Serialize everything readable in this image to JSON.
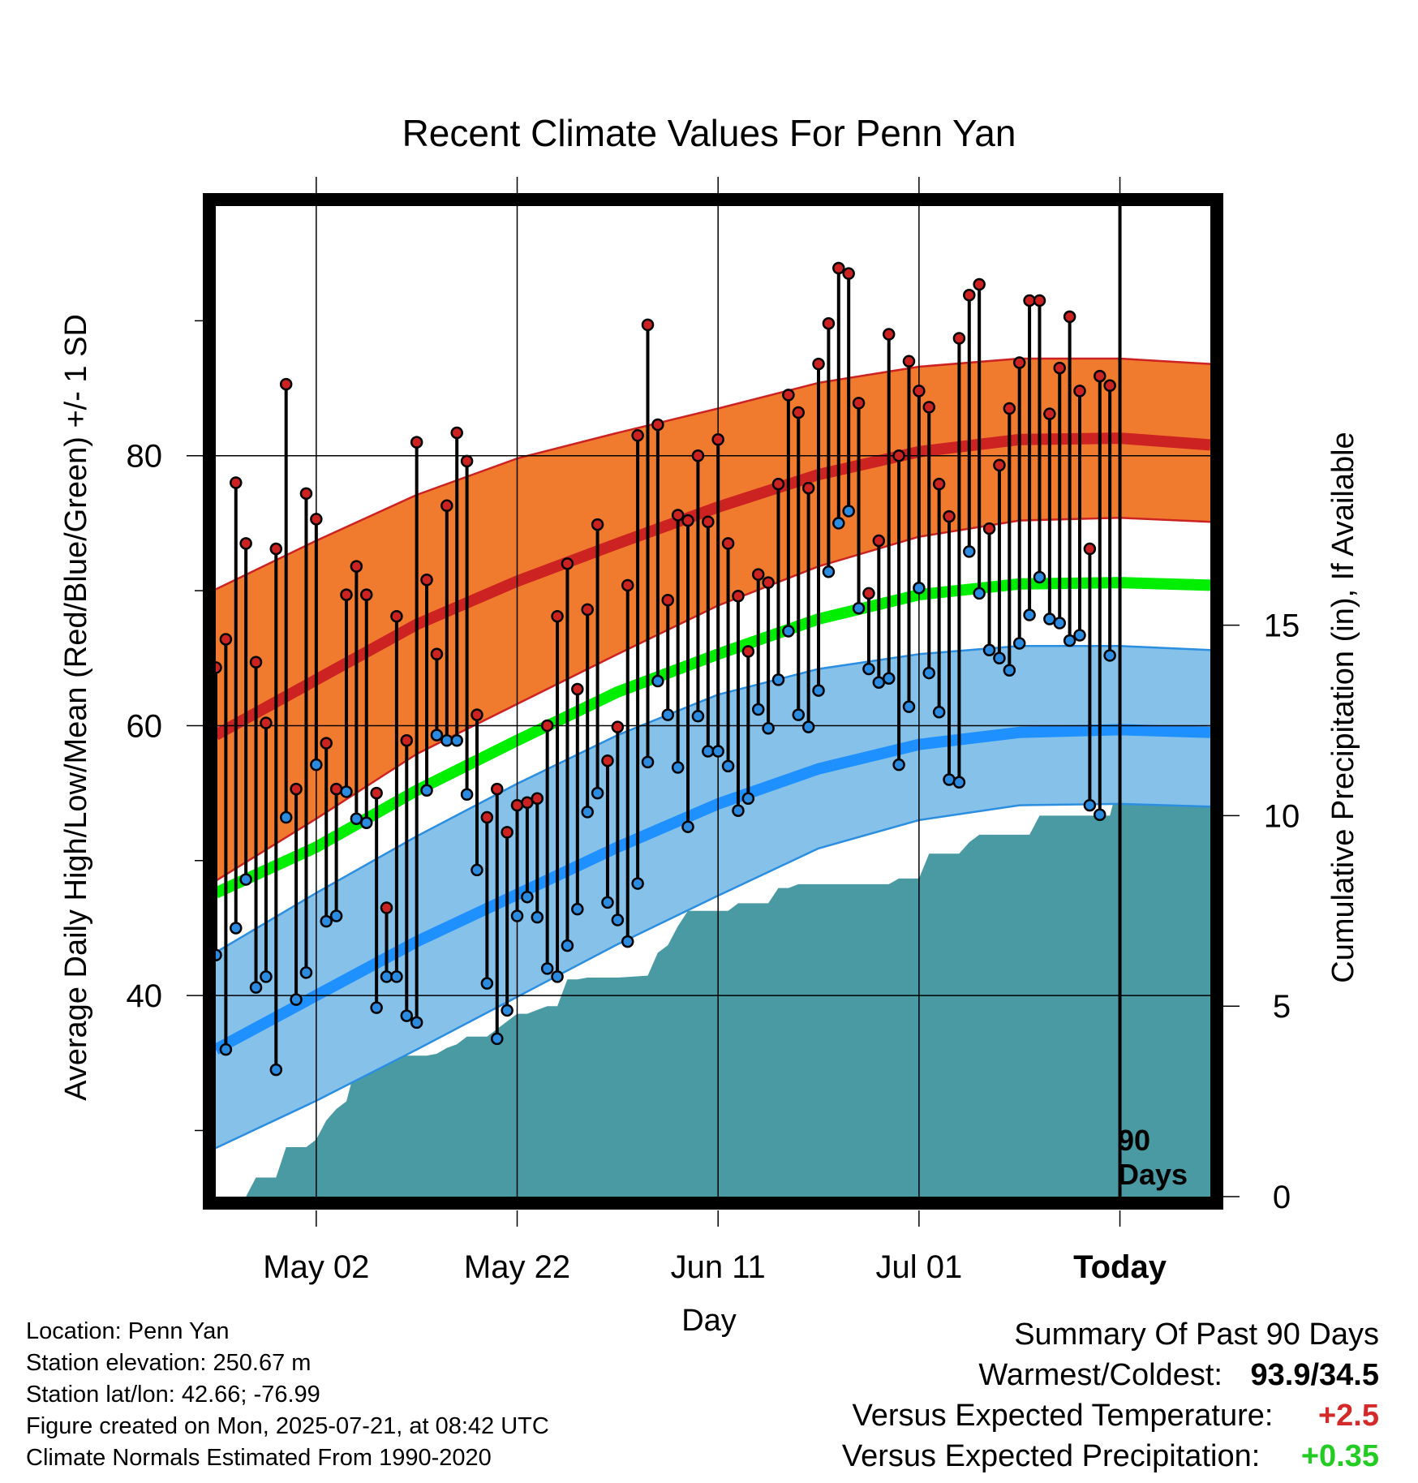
{
  "title": "Recent Climate Values For Penn Yan",
  "left_axis_label": "Average Daily High/Low/Mean (Red/Blue/Green) +/- 1 SD",
  "right_axis_label": "Cumulative Precipitation (in), If Available",
  "x_axis_label": "Day",
  "today_marker": {
    "label_line1": "90",
    "label_line2": "Days"
  },
  "station_info": {
    "location": "Location: Penn Yan",
    "elevation": "Station elevation: 250.67 m",
    "latlon": "Station lat/lon: 42.66; -76.99",
    "created": "Figure created on Mon, 2025-07-21, at 08:42 UTC",
    "normals": "Climate Normals Estimated From 1990-2020"
  },
  "summary": {
    "heading": "Summary Of Past 90 Days",
    "warmest_coldest_label": "Warmest/Coldest:",
    "warmest_coldest_value": "93.9/34.5",
    "temp_label": "Versus Expected Temperature:",
    "temp_value": "+2.5",
    "temp_color": "#d42a2a",
    "precip_label": "Versus Expected Precipitation:",
    "precip_value": "+0.35",
    "precip_color": "#22cc22"
  },
  "chart_data": {
    "type": "line",
    "x_unit": "day offset from Today (0 = Today)",
    "xlim": [
      -90,
      9
    ],
    "x_ticks": [
      {
        "x": -80,
        "label": "May 02"
      },
      {
        "x": -60,
        "label": "May 22"
      },
      {
        "x": -40,
        "label": "Jun 11"
      },
      {
        "x": -20,
        "label": "Jul 01"
      },
      {
        "x": 0,
        "label": "Today"
      }
    ],
    "temp_axis": {
      "ylim": [
        25.1,
        98.5
      ],
      "ticks": [
        40,
        60,
        80
      ],
      "minor_ticks": [
        30,
        50,
        70,
        90
      ],
      "grid": true
    },
    "precip_axis": {
      "ylim": [
        0,
        26
      ],
      "ticks": [
        0,
        5,
        10,
        15
      ]
    },
    "normals": {
      "x": [
        -90,
        -80,
        -70,
        -60,
        -50,
        -40,
        -30,
        -20,
        -10,
        0,
        9
      ],
      "mean_high": [
        59.3,
        63.4,
        67.5,
        70.7,
        73.5,
        76.2,
        78.6,
        80.3,
        81.2,
        81.3,
        80.8
      ],
      "high_upper": [
        70.1,
        73.7,
        77.1,
        79.8,
        81.7,
        83.5,
        85.4,
        86.6,
        87.2,
        87.2,
        86.8
      ],
      "high_lower": [
        48.5,
        53.1,
        57.9,
        61.6,
        65.3,
        68.9,
        71.8,
        74.0,
        75.2,
        75.4,
        75.1
      ],
      "mean_avg": [
        47.6,
        51.0,
        55.2,
        58.9,
        62.5,
        65.3,
        67.9,
        69.7,
        70.5,
        70.6,
        70.4
      ],
      "mean_low": [
        36.0,
        40.0,
        44.0,
        47.5,
        51.0,
        54.2,
        56.8,
        58.6,
        59.5,
        59.7,
        59.5
      ],
      "low_upper": [
        43.2,
        47.6,
        51.8,
        55.7,
        59.3,
        62.3,
        64.2,
        65.3,
        65.9,
        65.9,
        65.6
      ],
      "low_lower": [
        28.7,
        32.2,
        36.0,
        39.9,
        43.8,
        47.4,
        50.9,
        53.0,
        54.1,
        54.2,
        54.0
      ]
    },
    "daily_x": [
      -90,
      -89,
      -88,
      -87,
      -86,
      -85,
      -84,
      -83,
      -82,
      -81,
      -80,
      -79,
      -78,
      -77,
      -76,
      -75,
      -74,
      -73,
      -72,
      -71,
      -70,
      -69,
      -68,
      -67,
      -66,
      -65,
      -64,
      -63,
      -62,
      -61,
      -60,
      -59,
      -58,
      -57,
      -56,
      -55,
      -54,
      -53,
      -52,
      -51,
      -50,
      -49,
      -48,
      -47,
      -46,
      -45,
      -44,
      -43,
      -42,
      -41,
      -40,
      -39,
      -38,
      -37,
      -36,
      -35,
      -34,
      -33,
      -32,
      -31,
      -30,
      -29,
      -28,
      -27,
      -26,
      -25,
      -24,
      -23,
      -22,
      -21,
      -20,
      -19,
      -18,
      -17,
      -16,
      -15,
      -14,
      -13,
      -12,
      -11,
      -10,
      -9,
      -8,
      -7,
      -6,
      -5,
      -4,
      -3,
      -2,
      -1
    ],
    "series": [
      {
        "name": "High",
        "color": "#cc2222",
        "values": [
          64.3,
          66.4,
          78.0,
          73.5,
          64.7,
          60.2,
          73.1,
          85.3,
          55.3,
          77.2,
          75.3,
          58.7,
          55.3,
          69.7,
          71.8,
          69.7,
          55.0,
          46.5,
          68.1,
          58.9,
          81.0,
          70.8,
          65.3,
          76.3,
          81.7,
          79.6,
          60.8,
          53.2,
          55.3,
          52.1,
          54.1,
          54.3,
          54.6,
          60.0,
          68.1,
          72.0,
          62.7,
          68.6,
          74.9,
          57.4,
          59.9,
          70.4,
          81.5,
          89.7,
          82.3,
          69.3,
          75.6,
          75.2,
          80.0,
          75.1,
          81.2,
          73.5,
          69.6,
          65.5,
          71.2,
          70.6,
          77.9,
          84.5,
          83.2,
          77.6,
          86.8,
          89.8,
          93.9,
          93.5,
          83.9,
          69.8,
          73.7,
          89.0,
          80.0,
          87.0,
          84.8,
          83.6,
          77.9,
          75.5,
          88.7,
          91.9,
          92.7,
          74.6,
          79.3,
          83.5,
          86.9,
          91.5,
          91.5,
          83.1,
          86.5,
          90.3,
          84.8,
          73.1,
          85.9,
          85.2
        ]
      },
      {
        "name": "Low",
        "color": "#2a8be0",
        "values": [
          43.0,
          36.0,
          45.0,
          48.6,
          40.6,
          41.4,
          34.5,
          53.2,
          39.7,
          41.7,
          57.1,
          45.5,
          45.9,
          55.1,
          53.1,
          52.8,
          39.1,
          41.4,
          41.4,
          38.5,
          38.0,
          55.2,
          59.3,
          58.9,
          58.9,
          54.9,
          49.3,
          40.9,
          36.8,
          38.9,
          45.9,
          47.3,
          45.8,
          42.0,
          41.4,
          43.7,
          46.4,
          53.6,
          55.0,
          46.9,
          45.6,
          44.0,
          48.3,
          57.3,
          63.3,
          60.8,
          56.9,
          52.5,
          60.7,
          58.1,
          58.1,
          57.0,
          53.7,
          54.6,
          61.2,
          59.8,
          63.4,
          67.0,
          60.8,
          59.9,
          62.6,
          71.4,
          75.0,
          75.9,
          68.7,
          64.2,
          63.2,
          63.5,
          57.1,
          61.4,
          70.2,
          63.9,
          61.0,
          56.0,
          55.8,
          72.9,
          69.8,
          65.6,
          65.0,
          64.1,
          66.1,
          68.2,
          71.0,
          67.9,
          67.6,
          66.3,
          66.7,
          54.1,
          53.4,
          65.2
        ]
      }
    ],
    "precipitation": {
      "name": "Cumulative Precipitation",
      "color": "#4a9aa3",
      "x": [
        -90,
        -87,
        -86,
        -84,
        -83,
        -81,
        -80,
        -79,
        -78,
        -77,
        -76,
        -75,
        -74,
        -70,
        -69,
        -68,
        -67,
        -66,
        -65,
        -64,
        -63,
        -61,
        -60,
        -59,
        -58,
        -57,
        -56,
        -55,
        -54,
        -53,
        -52,
        -51,
        -50,
        -47,
        -46,
        -45,
        -44,
        -43,
        -42,
        -41,
        -40,
        -39,
        -38,
        -37,
        -36,
        -35,
        -34,
        -33,
        -32,
        -31,
        -30,
        -29,
        -28,
        -27,
        -26,
        -25,
        -24,
        -23,
        -22,
        -21,
        -20,
        -19,
        -18,
        -17,
        -16,
        -15,
        -14,
        -13,
        -12,
        -11,
        -10,
        -9,
        -8,
        -7,
        -6,
        -5,
        -4,
        -3,
        -2,
        -1,
        0,
        9
      ],
      "values": [
        0.0,
        0.0,
        0.5,
        0.5,
        1.3,
        1.3,
        1.5,
        2.0,
        2.3,
        2.5,
        3.5,
        3.7,
        3.7,
        3.7,
        3.7,
        3.75,
        3.9,
        4.0,
        4.2,
        4.2,
        4.2,
        4.6,
        4.8,
        4.8,
        4.9,
        5.0,
        5.0,
        5.7,
        5.7,
        5.75,
        5.75,
        5.75,
        5.75,
        5.8,
        6.4,
        6.6,
        7.1,
        7.5,
        7.5,
        7.5,
        7.5,
        7.5,
        7.7,
        7.7,
        7.7,
        7.7,
        8.1,
        8.1,
        8.2,
        8.2,
        8.2,
        8.2,
        8.2,
        8.2,
        8.2,
        8.2,
        8.2,
        8.2,
        8.35,
        8.35,
        8.35,
        9.0,
        9.0,
        9.0,
        9.0,
        9.3,
        9.5,
        9.5,
        9.5,
        9.5,
        9.5,
        9.5,
        10.0,
        10.0,
        10.0,
        10.0,
        10.0,
        10.0,
        10.0,
        10.0,
        11.0,
        11.0
      ]
    }
  }
}
